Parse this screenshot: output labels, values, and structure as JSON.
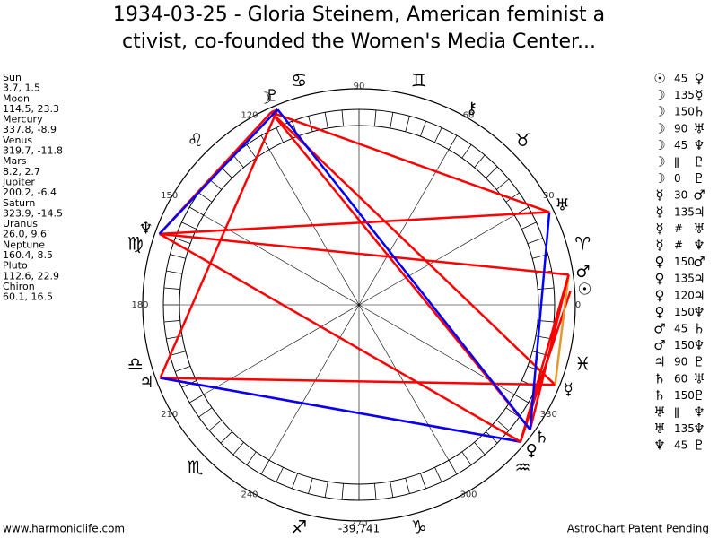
{
  "title": [
    "1934-03-25 - Gloria Steinem, American feminist a",
    "ctivist, co-founded the Women's Media Center..."
  ],
  "planets": [
    {
      "name": "Sun",
      "glyph": "☉",
      "longitude": 3.7,
      "declination": 1.5,
      "label": "3.7, 1.5"
    },
    {
      "name": "Moon",
      "glyph": "☽",
      "longitude": 114.5,
      "declination": 23.3,
      "label": "114.5, 23.3"
    },
    {
      "name": "Mercury",
      "glyph": "☿",
      "longitude": 337.8,
      "declination": -8.9,
      "label": "337.8, -8.9"
    },
    {
      "name": "Venus",
      "glyph": "♀",
      "longitude": 319.7,
      "declination": -11.8,
      "label": "319.7, -11.8"
    },
    {
      "name": "Mars",
      "glyph": "♂",
      "longitude": 8.2,
      "declination": 2.7,
      "label": "8.2, 2.7"
    },
    {
      "name": "Jupiter",
      "glyph": "♃",
      "longitude": 200.2,
      "declination": -6.4,
      "label": "200.2, -6.4"
    },
    {
      "name": "Saturn",
      "glyph": "♄",
      "longitude": 323.9,
      "declination": -14.5,
      "label": "323.9, -14.5"
    },
    {
      "name": "Uranus",
      "glyph": "♅",
      "longitude": 26.0,
      "declination": 9.6,
      "label": "26.0, 9.6"
    },
    {
      "name": "Neptune",
      "glyph": "♆",
      "longitude": 160.4,
      "declination": 8.5,
      "label": "160.4, 8.5"
    },
    {
      "name": "Pluto",
      "glyph": "♇",
      "longitude": 112.6,
      "declination": 22.9,
      "label": "112.6, 22.9"
    },
    {
      "name": "Chiron",
      "glyph": "⚷",
      "longitude": 60.1,
      "declination": 16.5,
      "label": "60.1, 16.5"
    }
  ],
  "aspects": [
    {
      "from": "☉",
      "aspect": 45,
      "to": "♀",
      "color": "#ff0000"
    },
    {
      "from": "☽",
      "aspect": 135,
      "to": "☿",
      "color": "#ff0000"
    },
    {
      "from": "☽",
      "aspect": 150,
      "to": "♄",
      "color": "#ff0000"
    },
    {
      "from": "☽",
      "aspect": 90,
      "to": "♅",
      "color": "#ff0000"
    },
    {
      "from": "☽",
      "aspect": 45,
      "to": "♆",
      "color": "#ff0000"
    },
    {
      "from": "☽",
      "aspect": "ǁ",
      "to": "♇",
      "color": "#ff0000"
    },
    {
      "from": "☽",
      "aspect": 0,
      "to": "♇",
      "color": "#ff0000"
    },
    {
      "from": "☿",
      "aspect": 30,
      "to": "♂",
      "color": "#e39a2c"
    },
    {
      "from": "☿",
      "aspect": 135,
      "to": "♃",
      "color": "#ff0000"
    },
    {
      "from": "☿",
      "aspect": "#",
      "to": "♅",
      "color": "#ff0000"
    },
    {
      "from": "☿",
      "aspect": "#",
      "to": "♆",
      "color": "#ff0000"
    },
    {
      "from": "♀",
      "aspect": 150,
      "to": "♂",
      "color": "#ff0000"
    },
    {
      "from": "♀",
      "aspect": 135,
      "to": "♃",
      "color": "#ff0000"
    },
    {
      "from": "♀",
      "aspect": 120,
      "to": "♃",
      "color": "#0000ff"
    },
    {
      "from": "♀",
      "aspect": 150,
      "to": "♆",
      "color": "#ff0000"
    },
    {
      "from": "♂",
      "aspect": 45,
      "to": "♄",
      "color": "#ff0000"
    },
    {
      "from": "♂",
      "aspect": 150,
      "to": "♆",
      "color": "#ff0000"
    },
    {
      "from": "♃",
      "aspect": 90,
      "to": "♇",
      "color": "#ff0000"
    },
    {
      "from": "♄",
      "aspect": 60,
      "to": "♅",
      "color": "#0000ff"
    },
    {
      "from": "♄",
      "aspect": 150,
      "to": "♇",
      "color": "#0000ff"
    },
    {
      "from": "♅",
      "aspect": "ǁ",
      "to": "♆",
      "color": "#ff0000"
    },
    {
      "from": "♅",
      "aspect": 135,
      "to": "♆",
      "color": "#ff0000"
    },
    {
      "from": "♆",
      "aspect": 45,
      "to": "♇",
      "color": "#0000ff"
    }
  ],
  "degree_ticks": [
    0,
    30,
    60,
    90,
    120,
    150,
    180,
    210,
    240,
    270,
    300,
    330
  ],
  "signs": [
    "♈",
    "♉",
    "♊",
    "♋",
    "♌",
    "♍",
    "♎",
    "♏",
    "♐",
    "♑",
    "♒",
    "♓"
  ],
  "score": "-39,741",
  "footer": {
    "left": "www.harmoniclife.com",
    "right": "AstroChart Patent Pending"
  }
}
